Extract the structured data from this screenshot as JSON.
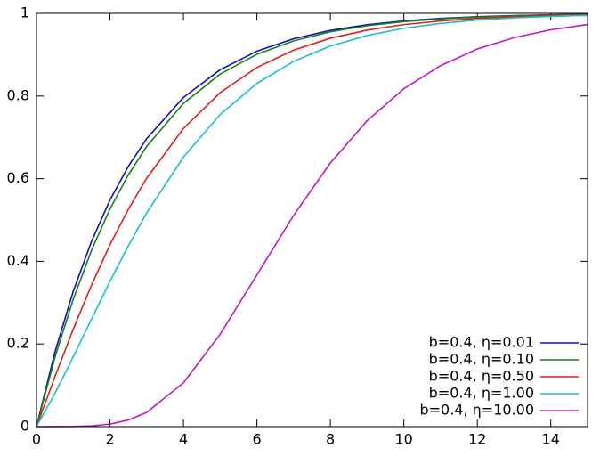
{
  "chart_data": {
    "type": "line",
    "x": [
      0,
      0.5,
      1,
      1.5,
      2,
      2.5,
      3,
      4,
      5,
      6,
      7,
      8,
      9,
      10,
      11,
      12,
      13,
      14,
      15
    ],
    "series": [
      {
        "name": "b=0.4, η=0.01",
        "color": "#1010b0",
        "values": [
          0,
          0.1798,
          0.3275,
          0.4487,
          0.5482,
          0.6298,
          0.6967,
          0.7965,
          0.8635,
          0.9085,
          0.9386,
          0.9588,
          0.9724,
          0.9815,
          0.9877,
          0.9917,
          0.9944,
          0.9963,
          0.9975
        ]
      },
      {
        "name": "b=0.4, η=0.10",
        "color": "#148214",
        "values": [
          0,
          0.167,
          0.3083,
          0.4271,
          0.5265,
          0.6093,
          0.678,
          0.7821,
          0.853,
          0.901,
          0.9335,
          0.9553,
          0.9701,
          0.9799,
          0.9865,
          0.991,
          0.994,
          0.9959,
          0.9973
        ]
      },
      {
        "name": "b=0.4, η=0.50",
        "color": "#e0201c",
        "values": [
          0,
          0.1204,
          0.2358,
          0.3429,
          0.4399,
          0.5259,
          0.6011,
          0.7215,
          0.8082,
          0.869,
          0.911,
          0.9398,
          0.9595,
          0.9728,
          0.9816,
          0.9877,
          0.9918,
          0.9945,
          0.9963
        ]
      },
      {
        "name": "b=0.4, η=1.00",
        "color": "#18c0c8",
        "values": [
          0,
          0.08,
          0.1686,
          0.2607,
          0.3514,
          0.4375,
          0.5171,
          0.6522,
          0.7553,
          0.8305,
          0.8838,
          0.9208,
          0.9465,
          0.9639,
          0.9757,
          0.9837,
          0.9891,
          0.9926,
          0.995
        ]
      },
      {
        "name": "b=0.4, η=10.00",
        "color": "#c018c0",
        "values": [
          0,
          5.04e-05,
          0.000405,
          0.001866,
          0.00616,
          0.01596,
          0.03438,
          0.106,
          0.2235,
          0.3671,
          0.5113,
          0.6379,
          0.7402,
          0.8176,
          0.8734,
          0.9137,
          0.9413,
          0.9601,
          0.9729
        ]
      }
    ],
    "xlim": [
      0,
      15
    ],
    "xticks": [
      0,
      2,
      4,
      6,
      8,
      10,
      12,
      14
    ],
    "ylim": [
      0,
      1
    ],
    "yticks": [
      0,
      0.2,
      0.4,
      0.6,
      0.8,
      1
    ],
    "legend": "lower right"
  }
}
